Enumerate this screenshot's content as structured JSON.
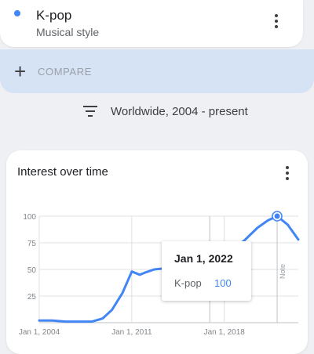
{
  "term": {
    "name": "K-pop",
    "subtitle": "Musical style",
    "color": "#4285f4",
    "menu_icon": "more-vert-icon"
  },
  "compare": {
    "label": "COMPARE",
    "icon": "plus-icon"
  },
  "filter": {
    "label": "Worldwide, 2004 - present",
    "icon": "filter-icon"
  },
  "card": {
    "title": "Interest over time",
    "menu_icon": "more-vert-icon"
  },
  "tooltip": {
    "date": "Jan 1, 2022",
    "term": "K-pop",
    "value": "100"
  },
  "chart_data": {
    "type": "line",
    "title": "Interest over time",
    "xlabel": "",
    "ylabel": "",
    "ylim": [
      0,
      100
    ],
    "xlim": [
      2004,
      2023.6
    ],
    "yticks": [
      25,
      50,
      75,
      100
    ],
    "xticks": [
      {
        "label": "Jan 1, 2004",
        "value": 2004
      },
      {
        "label": "Jan 1, 2011",
        "value": 2011
      },
      {
        "label": "Jan 1, 2018",
        "value": 2018
      }
    ],
    "grid": true,
    "note_label": "Note",
    "note_at": 2016.9,
    "highlight": {
      "x": 2022,
      "y": 100
    },
    "series": [
      {
        "name": "K-pop",
        "color": "#4285f4",
        "x": [
          2004,
          2005,
          2006,
          2007,
          2008,
          2008.8,
          2009.5,
          2010.3,
          2011,
          2011.6,
          2012,
          2012.7,
          2013.5,
          2014.5,
          2015.5,
          2016.5,
          2017.5,
          2018.5,
          2019.5,
          2020.5,
          2021.3,
          2022,
          2022.8,
          2023.6
        ],
        "y": [
          2,
          2,
          1,
          1,
          1,
          4,
          12,
          28,
          48,
          45,
          47,
          50,
          51,
          52,
          55,
          58,
          62,
          68,
          77,
          89,
          96,
          100,
          92,
          78
        ]
      }
    ]
  }
}
